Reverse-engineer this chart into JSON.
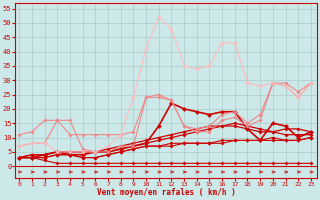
{
  "x": [
    0,
    1,
    2,
    3,
    4,
    5,
    6,
    7,
    8,
    9,
    10,
    11,
    12,
    13,
    14,
    15,
    16,
    17,
    18,
    19,
    20,
    21,
    22,
    23
  ],
  "background_color": "#cce8e8",
  "grid_color": "#aacccc",
  "xlabel": "Vent moyen/en rafales ( km/h )",
  "xlabel_color": "#cc0000",
  "lines": [
    {
      "y": [
        3,
        3,
        2,
        1,
        1,
        1,
        1,
        1,
        1,
        1,
        1,
        1,
        1,
        1,
        1,
        1,
        1,
        1,
        1,
        1,
        1,
        1,
        1,
        1
      ],
      "color": "#cc0000",
      "marker": "D",
      "markersize": 1.8,
      "linewidth": 0.8
    },
    {
      "y": [
        3,
        3,
        3,
        4,
        4,
        3,
        3,
        4,
        5,
        6,
        7,
        7,
        8,
        8,
        8,
        8,
        9,
        9,
        9,
        9,
        9,
        9,
        9,
        10
      ],
      "color": "#cc0000",
      "marker": "D",
      "markersize": 1.8,
      "linewidth": 0.8
    },
    {
      "y": [
        3,
        3,
        3,
        4,
        4,
        3,
        3,
        4,
        5,
        6,
        7,
        7,
        7,
        8,
        8,
        8,
        8,
        9,
        9,
        9,
        10,
        9,
        9,
        10
      ],
      "color": "#cc0000",
      "marker": "D",
      "markersize": 1.8,
      "linewidth": 0.8
    },
    {
      "y": [
        3,
        4,
        4,
        5,
        5,
        5,
        5,
        5,
        6,
        7,
        8,
        9,
        10,
        11,
        12,
        13,
        14,
        15,
        14,
        13,
        12,
        11,
        11,
        11
      ],
      "color": "#cc0000",
      "marker": "D",
      "markersize": 1.8,
      "linewidth": 0.9
    },
    {
      "y": [
        3,
        4,
        4,
        5,
        5,
        5,
        5,
        6,
        7,
        8,
        9,
        10,
        11,
        12,
        13,
        14,
        14,
        14,
        13,
        12,
        12,
        13,
        13,
        12
      ],
      "color": "#cc0000",
      "marker": "D",
      "markersize": 1.8,
      "linewidth": 0.9
    },
    {
      "y": [
        3,
        3,
        4,
        5,
        4,
        4,
        5,
        5,
        6,
        7,
        8,
        14,
        22,
        20,
        19,
        18,
        19,
        19,
        13,
        9,
        15,
        14,
        10,
        12
      ],
      "color": "#cc0000",
      "marker": "D",
      "markersize": 2.2,
      "linewidth": 1.2
    },
    {
      "y": [
        7,
        8,
        8,
        16,
        16,
        6,
        5,
        5,
        7,
        7,
        24,
        24,
        23,
        14,
        12,
        12,
        16,
        17,
        14,
        16,
        29,
        28,
        24,
        29
      ],
      "color": "#ee8888",
      "marker": "D",
      "markersize": 1.8,
      "linewidth": 0.8
    },
    {
      "y": [
        11,
        12,
        16,
        16,
        11,
        11,
        11,
        11,
        11,
        12,
        24,
        25,
        23,
        14,
        13,
        14,
        18,
        19,
        15,
        18,
        29,
        29,
        26,
        29
      ],
      "color": "#ee8888",
      "marker": "D",
      "markersize": 1.8,
      "linewidth": 0.8
    },
    {
      "y": [
        7,
        8,
        8,
        5,
        5,
        5,
        5,
        7,
        11,
        24,
        41,
        52,
        48,
        35,
        34,
        35,
        43,
        43,
        29,
        28,
        29,
        28,
        24,
        29
      ],
      "color": "#ffbbbb",
      "marker": "D",
      "markersize": 1.8,
      "linewidth": 0.8
    }
  ],
  "yticks": [
    0,
    5,
    10,
    15,
    20,
    25,
    30,
    35,
    40,
    45,
    50,
    55
  ],
  "xticks": [
    0,
    1,
    2,
    3,
    4,
    5,
    6,
    7,
    8,
    9,
    10,
    11,
    12,
    13,
    14,
    15,
    16,
    17,
    18,
    19,
    20,
    21,
    22,
    23
  ],
  "ylim": [
    -4,
    57
  ],
  "xlim": [
    -0.3,
    23.5
  ]
}
